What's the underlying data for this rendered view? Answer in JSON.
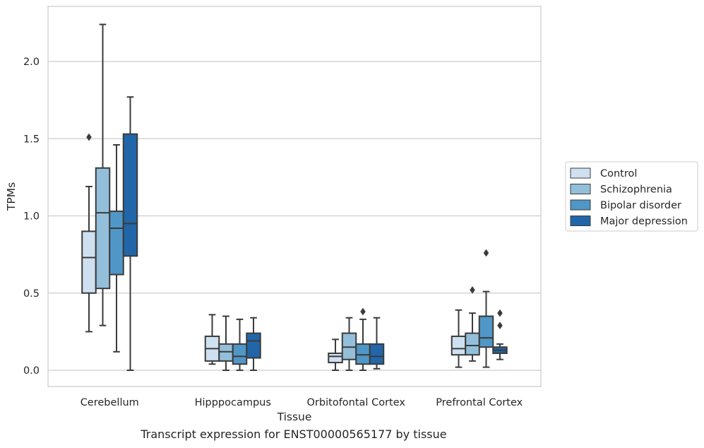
{
  "chart_data": {
    "type": "box",
    "xlabel": "Tissue",
    "ylabel": "TPMs",
    "ylim": [
      -0.11,
      2.35
    ],
    "yticks": [
      0.0,
      0.5,
      1.0,
      1.5,
      2.0
    ],
    "ytick_labels": [
      "0.0",
      "0.5",
      "1.0",
      "1.5",
      "2.0"
    ],
    "grid": "horizontal",
    "legend_position": "right",
    "categories": [
      "Cerebellum",
      "Hipppocampus",
      "Orbitofontal Cortex",
      "Prefrontal Cortex"
    ],
    "series": [
      {
        "name": "Control",
        "color": "#cfe0f0",
        "boxes": [
          {
            "whisker_low": 0.25,
            "q1": 0.5,
            "median": 0.73,
            "q3": 0.9,
            "whisker_high": 1.19,
            "outliers": [
              1.51
            ]
          },
          {
            "whisker_low": 0.04,
            "q1": 0.06,
            "median": 0.14,
            "q3": 0.22,
            "whisker_high": 0.36,
            "outliers": []
          },
          {
            "whisker_low": 0.0,
            "q1": 0.05,
            "median": 0.09,
            "q3": 0.11,
            "whisker_high": 0.2,
            "outliers": []
          },
          {
            "whisker_low": 0.02,
            "q1": 0.1,
            "median": 0.14,
            "q3": 0.22,
            "whisker_high": 0.39,
            "outliers": []
          }
        ]
      },
      {
        "name": "Schizophrenia",
        "color": "#93bfdb",
        "boxes": [
          {
            "whisker_low": 0.29,
            "q1": 0.53,
            "median": 1.02,
            "q3": 1.31,
            "whisker_high": 2.24,
            "outliers": []
          },
          {
            "whisker_low": 0.0,
            "q1": 0.06,
            "median": 0.12,
            "q3": 0.17,
            "whisker_high": 0.35,
            "outliers": []
          },
          {
            "whisker_low": 0.0,
            "q1": 0.07,
            "median": 0.15,
            "q3": 0.24,
            "whisker_high": 0.34,
            "outliers": []
          },
          {
            "whisker_low": 0.06,
            "q1": 0.1,
            "median": 0.16,
            "q3": 0.24,
            "whisker_high": 0.37,
            "outliers": [
              0.52
            ]
          }
        ]
      },
      {
        "name": "Bipolar disorder",
        "color": "#5096c6",
        "boxes": [
          {
            "whisker_low": 0.12,
            "q1": 0.62,
            "median": 0.92,
            "q3": 1.03,
            "whisker_high": 1.46,
            "outliers": []
          },
          {
            "whisker_low": 0.0,
            "q1": 0.04,
            "median": 0.09,
            "q3": 0.17,
            "whisker_high": 0.33,
            "outliers": []
          },
          {
            "whisker_low": 0.0,
            "q1": 0.04,
            "median": 0.1,
            "q3": 0.17,
            "whisker_high": 0.33,
            "outliers": [
              0.38
            ]
          },
          {
            "whisker_low": 0.02,
            "q1": 0.15,
            "median": 0.21,
            "q3": 0.35,
            "whisker_high": 0.51,
            "outliers": [
              0.76
            ]
          }
        ]
      },
      {
        "name": "Major depression",
        "color": "#2166a8",
        "boxes": [
          {
            "whisker_low": 0.0,
            "q1": 0.74,
            "median": 0.95,
            "q3": 1.53,
            "whisker_high": 1.77,
            "outliers": []
          },
          {
            "whisker_low": 0.0,
            "q1": 0.08,
            "median": 0.19,
            "q3": 0.24,
            "whisker_high": 0.34,
            "outliers": []
          },
          {
            "whisker_low": 0.01,
            "q1": 0.04,
            "median": 0.09,
            "q3": 0.17,
            "whisker_high": 0.34,
            "outliers": []
          },
          {
            "whisker_low": 0.07,
            "q1": 0.11,
            "median": 0.13,
            "q3": 0.15,
            "whisker_high": 0.17,
            "outliers": [
              0.29,
              0.37
            ]
          }
        ]
      }
    ],
    "caption": "Transcript expression for ENST00000565177 by tissue"
  }
}
